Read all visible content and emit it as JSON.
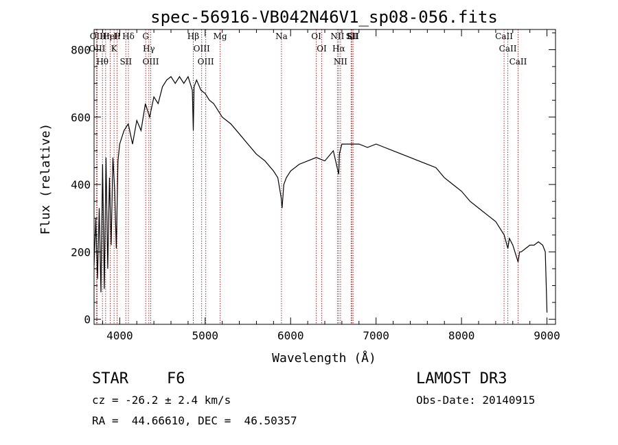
{
  "chart_data": {
    "type": "line",
    "title": "spec-56916-VB042N46V1_sp08-056.fits",
    "xlabel": "Wavelength (Å)",
    "ylabel": "Flux (relative)",
    "xlim": [
      3700,
      9100
    ],
    "ylim": [
      -15,
      860
    ],
    "xticks": [
      4000,
      5000,
      6000,
      7000,
      8000,
      9000
    ],
    "yticks": [
      0,
      200,
      400,
      600,
      800
    ],
    "grid": false,
    "series": [
      {
        "name": "spectrum",
        "x": [
          3700,
          3720,
          3740,
          3760,
          3780,
          3800,
          3820,
          3840,
          3860,
          3880,
          3900,
          3920,
          3940,
          3960,
          3980,
          4000,
          4050,
          4100,
          4150,
          4200,
          4250,
          4300,
          4350,
          4400,
          4450,
          4500,
          4550,
          4600,
          4650,
          4700,
          4750,
          4800,
          4850,
          4861,
          4870,
          4900,
          4950,
          5000,
          5050,
          5100,
          5150,
          5200,
          5300,
          5400,
          5500,
          5600,
          5700,
          5800,
          5850,
          5890,
          5900,
          5920,
          5950,
          6000,
          6100,
          6200,
          6300,
          6400,
          6500,
          6563,
          6570,
          6600,
          6700,
          6800,
          6900,
          7000,
          7100,
          7200,
          7300,
          7400,
          7500,
          7600,
          7700,
          7800,
          7900,
          8000,
          8100,
          8200,
          8300,
          8400,
          8500,
          8542,
          8560,
          8600,
          8662,
          8680,
          8700,
          8750,
          8800,
          8850,
          8900,
          8950,
          8980,
          9000
        ],
        "values": [
          160,
          300,
          120,
          330,
          80,
          460,
          90,
          480,
          150,
          420,
          220,
          480,
          390,
          210,
          470,
          520,
          560,
          580,
          520,
          590,
          560,
          640,
          600,
          660,
          640,
          690,
          710,
          720,
          700,
          720,
          700,
          720,
          680,
          560,
          690,
          710,
          680,
          670,
          650,
          640,
          620,
          600,
          580,
          550,
          520,
          490,
          470,
          440,
          420,
          360,
          330,
          400,
          420,
          440,
          460,
          470,
          480,
          470,
          500,
          430,
          490,
          520,
          520,
          520,
          510,
          520,
          510,
          500,
          490,
          480,
          470,
          460,
          450,
          420,
          400,
          380,
          350,
          330,
          310,
          290,
          250,
          210,
          240,
          220,
          170,
          200,
          200,
          210,
          220,
          220,
          230,
          220,
          200,
          20
        ]
      }
    ],
    "spectral_lines": [
      {
        "label": "Hθ",
        "wavelength": 3798
      },
      {
        "label": "OII",
        "wavelength": 3727
      },
      {
        "label": "OIII",
        "wavelength": 3736
      },
      {
        "label": "K",
        "wavelength": 3934
      },
      {
        "label": "HeI",
        "wavelength": 3889
      },
      {
        "label": "Hη",
        "wavelength": 3835
      },
      {
        "label": "H",
        "wavelength": 3969
      },
      {
        "label": "Hδ",
        "wavelength": 4102
      },
      {
        "label": "SII",
        "wavelength": 4072
      },
      {
        "label": "OIII",
        "wavelength": 4363
      },
      {
        "label": "Hγ",
        "wavelength": 4341
      },
      {
        "label": "G",
        "wavelength": 4304
      },
      {
        "label": "Hβ",
        "wavelength": 4861
      },
      {
        "label": "OIII",
        "wavelength": 4959
      },
      {
        "label": "OIII",
        "wavelength": 5007
      },
      {
        "label": "Mg",
        "wavelength": 5175
      },
      {
        "label": "Na",
        "wavelength": 5893
      },
      {
        "label": "OI",
        "wavelength": 6300
      },
      {
        "label": "OI",
        "wavelength": 6364
      },
      {
        "label": "Hα",
        "wavelength": 6563
      },
      {
        "label": "NII",
        "wavelength": 6548
      },
      {
        "label": "NII",
        "wavelength": 6584
      },
      {
        "label": "SII",
        "wavelength": 6717
      },
      {
        "label": "SII",
        "wavelength": 6731
      },
      {
        "label": "Li",
        "wavelength": 6708
      },
      {
        "label": "CaII",
        "wavelength": 8498
      },
      {
        "label": "CaII",
        "wavelength": 8542
      },
      {
        "label": "CaII",
        "wavelength": 8662
      }
    ]
  },
  "info": {
    "object_class": "STAR",
    "subclass": "F6",
    "survey": "LAMOST DR3",
    "cz": "cz = -26.2 ± 2.4 km/s",
    "obs_date": "Obs-Date: 20140915",
    "coords": "RA =  44.66610, DEC =  46.50357"
  },
  "colors": {
    "line_marker": "#b22222",
    "spectrum": "#000000",
    "axis": "#000000"
  }
}
